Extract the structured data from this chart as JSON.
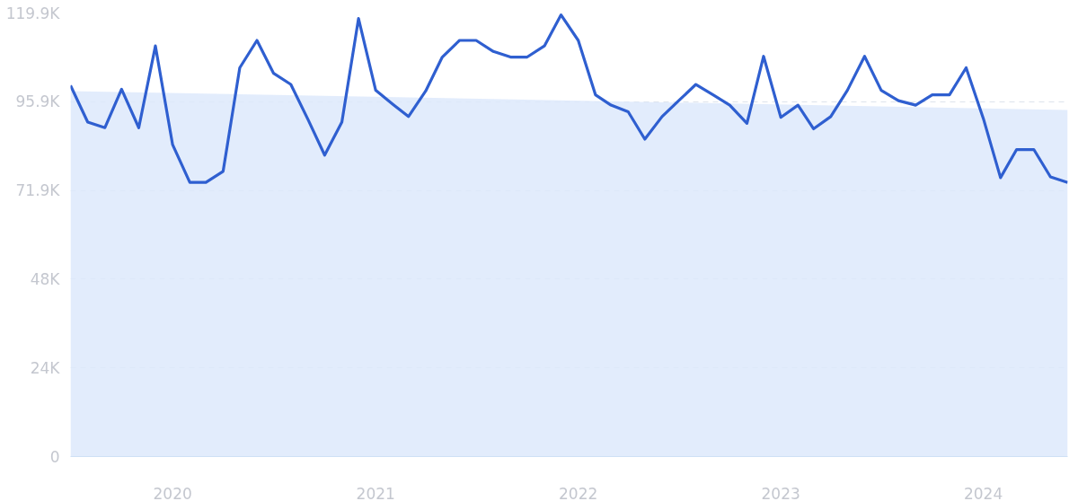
{
  "chart_data": {
    "type": "line",
    "x": [
      "2019-07",
      "2019-08",
      "2019-09",
      "2019-10",
      "2019-11",
      "2019-12",
      "2020-01",
      "2020-02",
      "2020-03",
      "2020-04",
      "2020-05",
      "2020-06",
      "2020-07",
      "2020-08",
      "2020-09",
      "2020-10",
      "2020-11",
      "2020-12",
      "2021-01",
      "2021-02",
      "2021-03",
      "2021-04",
      "2021-05",
      "2021-06",
      "2021-07",
      "2021-08",
      "2021-09",
      "2021-10",
      "2021-11",
      "2021-12",
      "2022-01",
      "2022-02",
      "2022-03",
      "2022-04",
      "2022-05",
      "2022-06",
      "2022-07",
      "2022-08",
      "2022-09",
      "2022-10",
      "2022-11",
      "2022-12",
      "2023-01",
      "2023-02",
      "2023-03",
      "2023-04",
      "2023-05",
      "2023-06",
      "2023-07",
      "2023-08",
      "2023-09",
      "2023-10",
      "2023-11",
      "2023-12",
      "2024-01",
      "2024-02",
      "2024-03",
      "2024-04",
      "2024-05",
      "2024-06"
    ],
    "series": [
      {
        "type": "area",
        "color": "#dde9fb",
        "x": [
          "2019-07",
          "2024-06"
        ],
        "values": [
          98800,
          93700
        ]
      },
      {
        "color": "#2f5fd0",
        "values": [
          100300,
          90400,
          88900,
          99300,
          88900,
          111000,
          84300,
          74100,
          74100,
          77100,
          105100,
          112500,
          103600,
          100600,
          91100,
          81500,
          90400,
          118400,
          99000,
          95200,
          91900,
          98800,
          108000,
          112500,
          112500,
          109500,
          108000,
          108000,
          111000,
          119400,
          112500,
          97800,
          95000,
          93200,
          85800,
          91900,
          96200,
          100600,
          97800,
          95000,
          90100,
          108200,
          91700,
          95000,
          88600,
          91900,
          99000,
          108200,
          99000,
          96200,
          95000,
          97800,
          97800,
          105100,
          91400,
          75400,
          83000,
          83000,
          75600,
          74100
        ]
      }
    ],
    "xlim": [
      "2019-07",
      "2024-06"
    ],
    "xticks": [
      "2020",
      "2021",
      "2022",
      "2023",
      "2024"
    ],
    "ylim": [
      0,
      119900
    ],
    "yticks": [
      0,
      {
        "value": 23980,
        "label": "24K"
      },
      {
        "value": 47960,
        "label": "48K"
      },
      {
        "value": 71940,
        "label": "71.9K"
      },
      {
        "value": 95920,
        "label": "95.9K"
      },
      {
        "value": 119900,
        "label": "119.9K"
      }
    ],
    "grid": "y",
    "marker": "none",
    "line_style": "solid"
  }
}
